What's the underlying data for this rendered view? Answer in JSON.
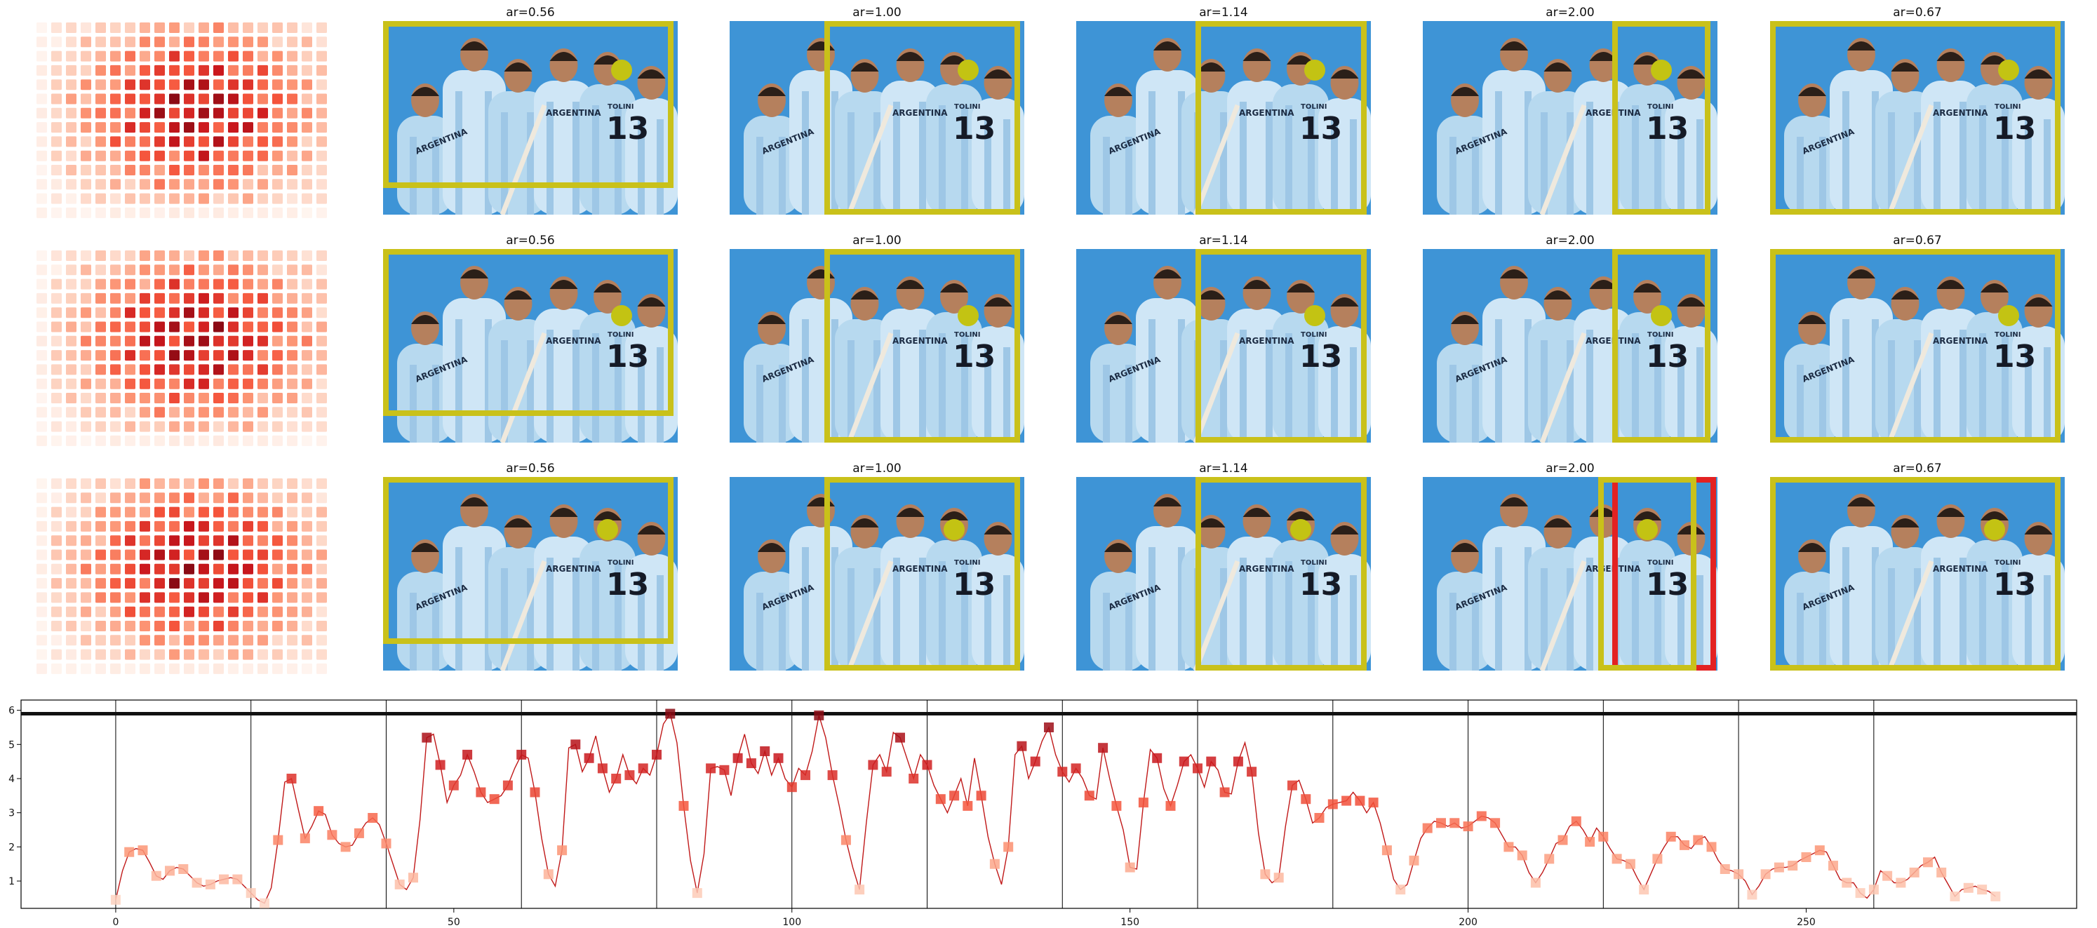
{
  "panel_titles": [
    "ar=0.56",
    "ar=1.00",
    "ar=1.14",
    "ar=2.00",
    "ar=0.67"
  ],
  "colors": {
    "crop_box": "#c9c11a",
    "alt_crop_box": "#e32222",
    "focus_dot": "#c3c313",
    "sky": "#3e94d6",
    "jersey": "#b7d9ef",
    "line": "#c01818"
  },
  "photo": {
    "jersey_text": "ARGENTINA",
    "player_name": "TOLINI",
    "player_number": "13"
  },
  "chart_data": {
    "type": "line",
    "title": "",
    "xlabel": "",
    "ylabel": "",
    "xlim": [
      -14,
      290
    ],
    "ylim": [
      0.2,
      6.3
    ],
    "xticks": [
      0,
      50,
      100,
      150,
      200,
      250
    ],
    "yticks": [
      1,
      2,
      3,
      4,
      5,
      6
    ],
    "grid": false,
    "reference_line_y": 5.9,
    "segment_boundaries": [
      0,
      20,
      40,
      60,
      80,
      100,
      120,
      140,
      160,
      180,
      200,
      220,
      240,
      260
    ],
    "x": [
      0,
      1,
      2,
      3,
      4,
      5,
      6,
      7,
      8,
      9,
      10,
      11,
      12,
      13,
      14,
      15,
      16,
      17,
      18,
      19,
      20,
      21,
      22,
      23,
      24,
      25,
      26,
      27,
      28,
      29,
      30,
      31,
      32,
      33,
      34,
      35,
      36,
      37,
      38,
      39,
      40,
      41,
      42,
      43,
      44,
      45,
      46,
      47,
      48,
      49,
      50,
      51,
      52,
      53,
      54,
      55,
      56,
      57,
      58,
      59,
      60,
      61,
      62,
      63,
      64,
      65,
      66,
      67,
      68,
      69,
      70,
      71,
      72,
      73,
      74,
      75,
      76,
      77,
      78,
      79,
      80,
      81,
      82,
      83,
      84,
      85,
      86,
      87,
      88,
      89,
      90,
      91,
      92,
      93,
      94,
      95,
      96,
      97,
      98,
      99,
      100,
      101,
      102,
      103,
      104,
      105,
      106,
      107,
      108,
      109,
      110,
      111,
      112,
      113,
      114,
      115,
      116,
      117,
      118,
      119,
      120,
      121,
      122,
      123,
      124,
      125,
      126,
      127,
      128,
      129,
      130,
      131,
      132,
      133,
      134,
      135,
      136,
      137,
      138,
      139,
      140,
      141,
      142,
      143,
      144,
      145,
      146,
      147,
      148,
      149,
      150,
      151,
      152,
      153,
      154,
      155,
      156,
      157,
      158,
      159,
      160,
      161,
      162,
      163,
      164,
      165,
      166,
      167,
      168,
      169,
      170,
      171,
      172,
      173,
      174,
      175,
      176,
      177,
      178,
      179,
      180,
      181,
      182,
      183,
      184,
      185,
      186,
      187,
      188,
      189,
      190,
      191,
      192,
      193,
      194,
      195,
      196,
      197,
      198,
      199,
      200,
      201,
      202,
      203,
      204,
      205,
      206,
      207,
      208,
      209,
      210,
      211,
      212,
      213,
      214,
      215,
      216,
      217,
      218,
      219,
      220,
      221,
      222,
      223,
      224,
      225,
      226,
      227,
      228,
      229,
      230,
      231,
      232,
      233,
      234,
      235,
      236,
      237,
      238,
      239,
      240,
      241,
      242,
      243,
      244,
      245,
      246,
      247,
      248,
      249,
      250,
      251,
      252,
      253,
      254,
      255,
      256,
      257,
      258,
      259,
      260,
      261,
      262,
      263,
      264,
      265,
      266,
      267,
      268,
      269,
      270,
      271,
      272,
      273,
      274,
      275,
      276,
      277,
      278
    ],
    "series": [
      {
        "values": [
          0.45,
          1.3,
          1.85,
          1.95,
          1.9,
          1.55,
          1.15,
          1.05,
          1.3,
          1.4,
          1.35,
          1.15,
          0.95,
          0.85,
          0.9,
          1.0,
          1.05,
          1.1,
          1.05,
          0.85,
          0.65,
          0.45,
          0.35,
          0.8,
          2.2,
          3.9,
          4.0,
          3.1,
          2.25,
          2.6,
          3.05,
          2.95,
          2.35,
          2.1,
          2.0,
          2.05,
          2.4,
          2.7,
          2.85,
          2.65,
          2.1,
          1.5,
          0.9,
          0.75,
          1.1,
          2.8,
          5.2,
          5.3,
          4.4,
          3.3,
          3.8,
          4.1,
          4.7,
          4.2,
          3.6,
          3.3,
          3.4,
          3.5,
          3.8,
          4.3,
          4.7,
          4.6,
          3.6,
          2.25,
          1.2,
          0.85,
          1.9,
          4.9,
          5.0,
          4.2,
          4.6,
          5.25,
          4.3,
          3.6,
          4.0,
          4.7,
          4.1,
          3.85,
          4.3,
          4.1,
          4.7,
          5.6,
          5.9,
          5.05,
          3.2,
          1.6,
          0.65,
          1.8,
          4.3,
          4.35,
          4.25,
          3.5,
          4.6,
          5.3,
          4.45,
          4.15,
          4.8,
          4.1,
          4.6,
          4.0,
          3.75,
          4.3,
          4.1,
          4.8,
          5.85,
          5.2,
          4.1,
          3.2,
          2.2,
          1.4,
          0.75,
          2.7,
          4.4,
          4.7,
          4.2,
          5.35,
          5.2,
          4.6,
          4.0,
          4.7,
          4.4,
          3.8,
          3.4,
          3.0,
          3.5,
          4.0,
          3.2,
          4.6,
          3.5,
          2.3,
          1.5,
          0.9,
          2.0,
          4.7,
          4.95,
          4.0,
          4.5,
          5.1,
          5.5,
          4.7,
          4.2,
          3.9,
          4.3,
          4.0,
          3.5,
          3.4,
          4.9,
          4.0,
          3.2,
          2.5,
          1.4,
          1.35,
          3.3,
          4.85,
          4.6,
          3.7,
          3.2,
          3.8,
          4.5,
          4.7,
          4.3,
          3.75,
          4.5,
          4.25,
          3.6,
          3.55,
          4.5,
          5.05,
          4.2,
          2.4,
          1.2,
          0.95,
          1.1,
          2.6,
          3.8,
          3.95,
          3.4,
          2.7,
          2.85,
          3.15,
          3.25,
          3.3,
          3.35,
          3.6,
          3.35,
          3.0,
          3.3,
          2.7,
          1.9,
          1.05,
          0.75,
          0.9,
          1.6,
          2.25,
          2.55,
          2.75,
          2.7,
          2.6,
          2.7,
          2.55,
          2.6,
          2.75,
          2.9,
          2.85,
          2.7,
          2.35,
          2.0,
          2.0,
          1.75,
          1.25,
          0.95,
          1.25,
          1.65,
          2.1,
          2.2,
          2.6,
          2.75,
          2.5,
          2.15,
          2.55,
          2.3,
          1.95,
          1.65,
          1.6,
          1.5,
          1.1,
          0.75,
          1.2,
          1.65,
          2.0,
          2.3,
          2.3,
          2.05,
          1.95,
          2.2,
          2.3,
          2.0,
          1.6,
          1.35,
          1.3,
          1.2,
          1.0,
          0.6,
          0.85,
          1.2,
          1.35,
          1.4,
          1.4,
          1.45,
          1.6,
          1.7,
          1.8,
          1.9,
          1.85,
          1.45,
          1.05,
          0.95,
          0.95,
          0.65,
          0.5,
          0.75,
          1.3,
          1.15,
          0.95,
          0.95,
          1.05,
          1.25,
          1.45,
          1.55,
          1.7,
          1.25,
          0.9,
          0.55,
          0.75,
          0.8,
          0.85,
          0.75,
          0.7,
          0.55
        ]
      }
    ]
  }
}
